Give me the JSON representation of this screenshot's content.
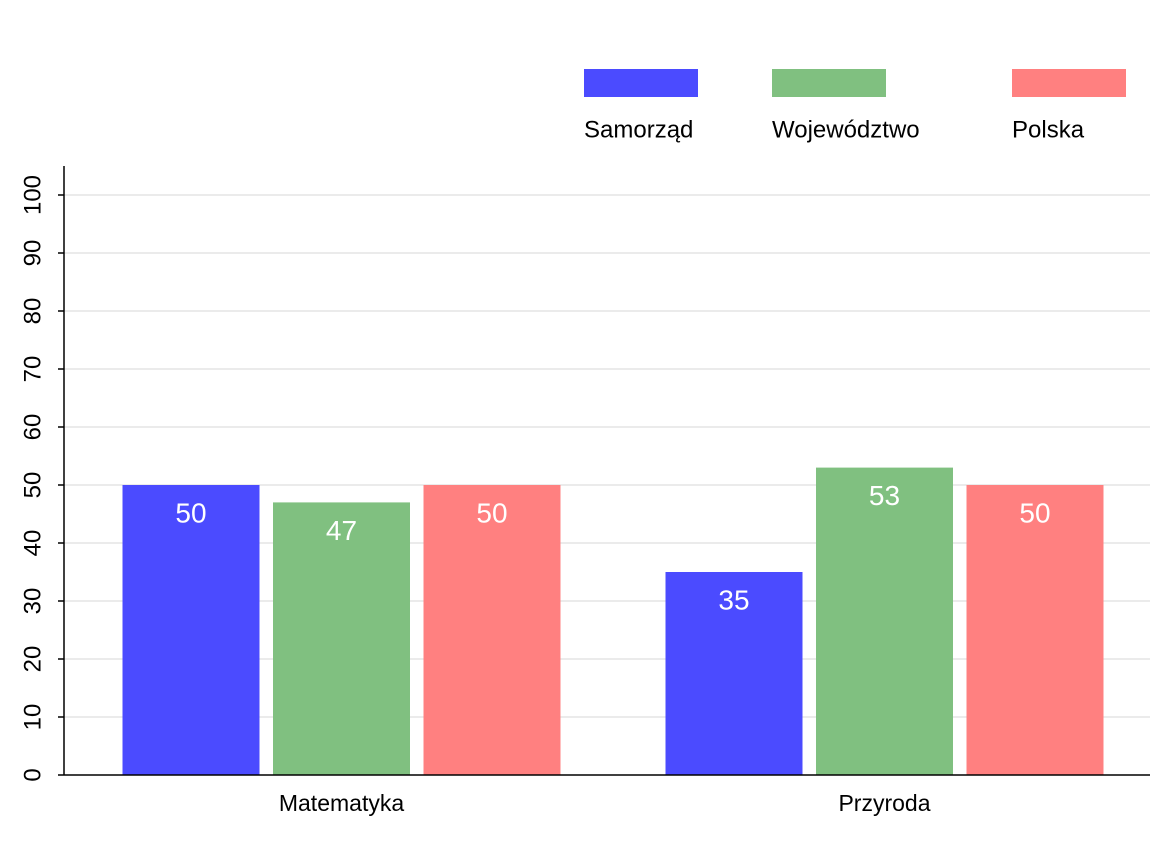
{
  "chart_data": {
    "type": "bar",
    "categories": [
      "Matematyka",
      "Przyroda"
    ],
    "series": [
      {
        "name": "Samorząd",
        "color": "#4b4bff",
        "values": [
          50,
          35
        ]
      },
      {
        "name": "Województwo",
        "color": "#80c080",
        "values": [
          47,
          53
        ]
      },
      {
        "name": "Polska",
        "color": "#ff8080",
        "values": [
          50,
          50
        ]
      }
    ],
    "ylim": [
      0,
      105
    ],
    "yticks": [
      0,
      10,
      20,
      30,
      40,
      50,
      60,
      70,
      80,
      90,
      100
    ],
    "grid": true,
    "legend": "top"
  }
}
